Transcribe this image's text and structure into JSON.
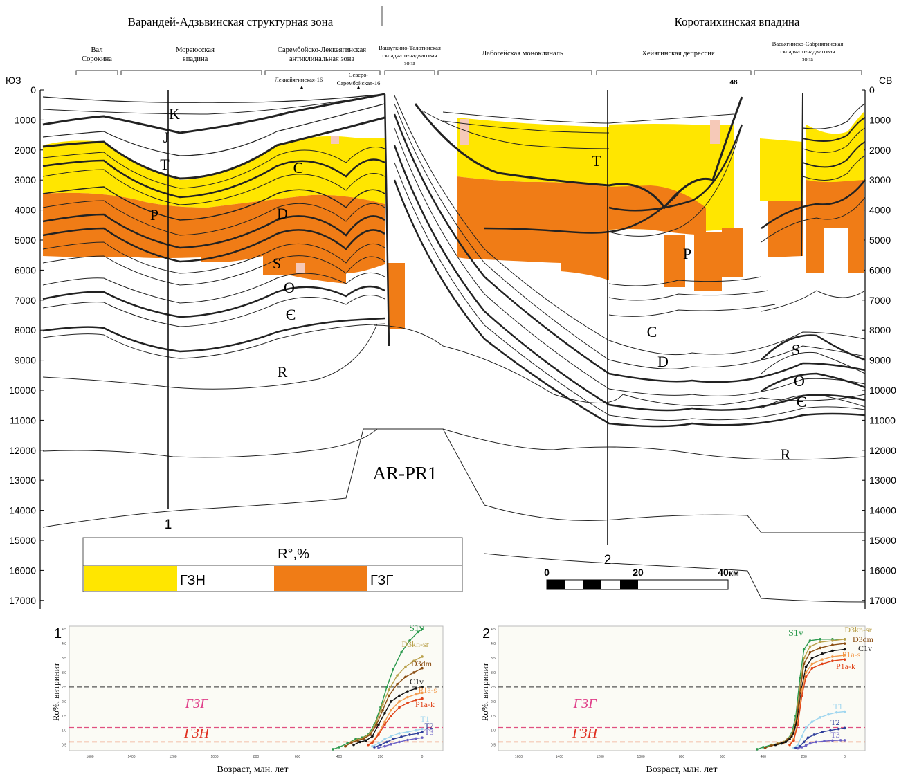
{
  "header": {
    "zone_left": "Варандей-Адзьвинская структурная зона",
    "zone_right": "Коротаихинская впадина",
    "sw": "ЮЗ",
    "ne": "СВ"
  },
  "subzones": [
    {
      "line1": "Вал",
      "line2": "Сорокина",
      "line3": ""
    },
    {
      "line1": "Мореюсская",
      "line2": "впадина",
      "line3": ""
    },
    {
      "line1": "Сарембойско-Леккеягинская",
      "line2": "антиклинальная зона",
      "line3": ""
    },
    {
      "line1": "Вашуткино-Талотинская",
      "line2": "складчато-надвиговая",
      "line3": "зона"
    },
    {
      "line1": "Лабогейская моноклиналь",
      "line2": "",
      "line3": ""
    },
    {
      "line1": "Хейягинская депрессия",
      "line2": "",
      "line3": ""
    },
    {
      "line1": "Васьягинско-Сабриягинская",
      "line2": "складчато-надвиговая",
      "line3": "зона"
    }
  ],
  "wells": {
    "w1": "Леккейягинская-16",
    "w2a": "Северо-",
    "w2b": "Сарембойская-16",
    "w3": "48"
  },
  "depth_ticks": [
    "0",
    "1000",
    "2000",
    "3000",
    "4000",
    "5000",
    "6000",
    "7000",
    "8000",
    "9000",
    "10000",
    "11000",
    "12000",
    "13000",
    "14000",
    "15000",
    "16000",
    "17000"
  ],
  "strata_left": [
    "K",
    "J",
    "T",
    "P",
    "C",
    "D",
    "S",
    "O",
    "Є",
    "R"
  ],
  "strata_right": [
    "T",
    "P",
    "C",
    "D",
    "S",
    "O",
    "Є",
    "R"
  ],
  "basement": "AR-PR1",
  "profile_markers": [
    "1",
    "2"
  ],
  "legend": {
    "title": "R°,%",
    "gzn": "ГЗН",
    "gzg": "ГЗГ"
  },
  "colors": {
    "gzn": "#ffe600",
    "gzg": "#f07c16",
    "pink": "#f6c9b8"
  },
  "scale": {
    "ticks": [
      "0",
      "20",
      "40"
    ],
    "unit": "км"
  },
  "charts": {
    "ylabel": "Ro%, витринит",
    "xlabel": "Возраст, млн. лет",
    "gzg_label": "ГЗГ",
    "gzn_label": "ГЗН",
    "x_ticks": [
      "1600",
      "1400",
      "1200",
      "1000",
      "800",
      "600",
      "400",
      "200",
      "0"
    ],
    "y_ticks": [
      "0.5",
      "1.0",
      "1.5",
      "2.0",
      "2.5",
      "3.0",
      "3.5",
      "4.0",
      "4.5"
    ]
  },
  "chart_data": [
    {
      "type": "line",
      "title": "1",
      "xlabel": "Возраст, млн. лет",
      "ylabel": "Ro%, витринит",
      "xlim": [
        1700,
        -100
      ],
      "ylim": [
        0.3,
        4.6
      ],
      "hlines": [
        2.5,
        1.1,
        0.6
      ],
      "series": [
        {
          "name": "S1v",
          "color": "#2c9a4e",
          "x": [
            430,
            400,
            360,
            320,
            290,
            260,
            230,
            200,
            170,
            140,
            100,
            60,
            20,
            0
          ],
          "y": [
            0.35,
            0.42,
            0.55,
            0.7,
            0.75,
            0.85,
            1.2,
            1.8,
            2.5,
            3.1,
            3.7,
            4.1,
            4.4,
            4.5
          ]
        },
        {
          "name": "D3kn-sr",
          "color": "#b9a04a",
          "x": [
            370,
            340,
            310,
            280,
            250,
            220,
            190,
            160,
            120,
            80,
            40,
            0
          ],
          "y": [
            0.45,
            0.6,
            0.68,
            0.75,
            0.9,
            1.3,
            1.9,
            2.4,
            2.9,
            3.2,
            3.4,
            3.55
          ]
        },
        {
          "name": "D3dm",
          "color": "#8a4d12",
          "x": [
            370,
            340,
            310,
            280,
            250,
            220,
            190,
            160,
            120,
            80,
            40,
            0
          ],
          "y": [
            0.45,
            0.58,
            0.65,
            0.72,
            0.85,
            1.2,
            1.7,
            2.2,
            2.6,
            2.85,
            3.0,
            3.15
          ]
        },
        {
          "name": "C1v",
          "color": "#111111",
          "x": [
            330,
            300,
            270,
            240,
            210,
            180,
            150,
            110,
            70,
            30,
            0
          ],
          "y": [
            0.5,
            0.6,
            0.65,
            0.8,
            1.2,
            1.6,
            2.0,
            2.2,
            2.35,
            2.45,
            2.5
          ]
        },
        {
          "name": "P1a-s",
          "color": "#f39a4c",
          "x": [
            260,
            240,
            210,
            180,
            150,
            110,
            70,
            30,
            0
          ],
          "y": [
            0.5,
            0.6,
            0.9,
            1.3,
            1.7,
            2.0,
            2.15,
            2.25,
            2.3
          ]
        },
        {
          "name": "P1a-k",
          "color": "#e0441a",
          "x": [
            260,
            240,
            210,
            180,
            150,
            110,
            70,
            30,
            0
          ],
          "y": [
            0.5,
            0.58,
            0.85,
            1.2,
            1.5,
            1.8,
            1.95,
            2.05,
            2.1
          ]
        },
        {
          "name": "T1",
          "color": "#9fd6ef",
          "x": [
            240,
            210,
            180,
            150,
            110,
            70,
            30,
            0
          ],
          "y": [
            0.45,
            0.55,
            0.7,
            0.8,
            0.9,
            0.95,
            1.0,
            1.05
          ]
        },
        {
          "name": "T2",
          "color": "#2e3e9a",
          "x": [
            230,
            200,
            170,
            140,
            100,
            60,
            20,
            0
          ],
          "y": [
            0.42,
            0.5,
            0.6,
            0.7,
            0.78,
            0.85,
            0.9,
            0.95
          ]
        },
        {
          "name": "T3",
          "color": "#6a5fc4",
          "x": [
            210,
            180,
            150,
            110,
            70,
            30,
            0
          ],
          "y": [
            0.4,
            0.45,
            0.52,
            0.6,
            0.67,
            0.72,
            0.75
          ]
        }
      ]
    },
    {
      "type": "line",
      "title": "2",
      "xlabel": "Возраст, млн. лет",
      "ylabel": "Ro%, витринит",
      "xlim": [
        1700,
        -100
      ],
      "ylim": [
        0.3,
        4.6
      ],
      "hlines": [
        2.5,
        1.1,
        0.6
      ],
      "series": [
        {
          "name": "S1v",
          "color": "#2c9a4e",
          "x": [
            430,
            400,
            360,
            320,
            300,
            280,
            260,
            240,
            220,
            200,
            170,
            120,
            60,
            0
          ],
          "y": [
            0.35,
            0.42,
            0.5,
            0.55,
            0.6,
            0.7,
            0.9,
            1.5,
            2.8,
            3.8,
            4.1,
            4.15,
            4.15,
            4.15
          ]
        },
        {
          "name": "D3kn-sr",
          "color": "#b9a04a",
          "x": [
            390,
            360,
            330,
            300,
            280,
            260,
            240,
            220,
            200,
            170,
            120,
            60,
            0
          ],
          "y": [
            0.4,
            0.48,
            0.55,
            0.6,
            0.7,
            0.85,
            1.3,
            2.5,
            3.5,
            3.9,
            4.05,
            4.1,
            4.15
          ]
        },
        {
          "name": "D3dm",
          "color": "#8a4d12",
          "x": [
            390,
            360,
            330,
            300,
            280,
            260,
            240,
            220,
            200,
            170,
            120,
            60,
            0
          ],
          "y": [
            0.4,
            0.47,
            0.53,
            0.58,
            0.68,
            0.8,
            1.2,
            2.3,
            3.3,
            3.7,
            3.85,
            3.95,
            4.0
          ]
        },
        {
          "name": "C1v",
          "color": "#111111",
          "x": [
            340,
            310,
            290,
            270,
            250,
            230,
            210,
            190,
            160,
            110,
            60,
            0
          ],
          "y": [
            0.5,
            0.55,
            0.6,
            0.7,
            0.9,
            1.5,
            2.5,
            3.2,
            3.5,
            3.65,
            3.75,
            3.8
          ]
        },
        {
          "name": "P1a-s",
          "color": "#f39a4c",
          "x": [
            270,
            250,
            230,
            210,
            190,
            160,
            110,
            60,
            0
          ],
          "y": [
            0.5,
            0.7,
            1.3,
            2.4,
            3.0,
            3.3,
            3.45,
            3.55,
            3.6
          ]
        },
        {
          "name": "P1a-k",
          "color": "#e0441a",
          "x": [
            270,
            250,
            230,
            210,
            190,
            160,
            110,
            60,
            0
          ],
          "y": [
            0.5,
            0.65,
            1.2,
            2.2,
            2.85,
            3.15,
            3.3,
            3.4,
            3.45
          ]
        },
        {
          "name": "T1",
          "color": "#9fd6ef",
          "x": [
            250,
            230,
            210,
            190,
            160,
            120,
            80,
            40,
            0
          ],
          "y": [
            0.4,
            0.5,
            0.8,
            1.1,
            1.3,
            1.45,
            1.55,
            1.62,
            1.65
          ]
        },
        {
          "name": "T2",
          "color": "#2e3e9a",
          "x": [
            240,
            220,
            200,
            180,
            150,
            110,
            70,
            30,
            0
          ],
          "y": [
            0.4,
            0.45,
            0.6,
            0.75,
            0.85,
            0.95,
            1.0,
            1.05,
            1.08
          ]
        },
        {
          "name": "T3",
          "color": "#6a5fc4",
          "x": [
            230,
            210,
            190,
            170,
            140,
            100,
            60,
            20,
            0
          ],
          "y": [
            0.38,
            0.42,
            0.48,
            0.55,
            0.6,
            0.63,
            0.65,
            0.66,
            0.66
          ]
        }
      ]
    }
  ]
}
